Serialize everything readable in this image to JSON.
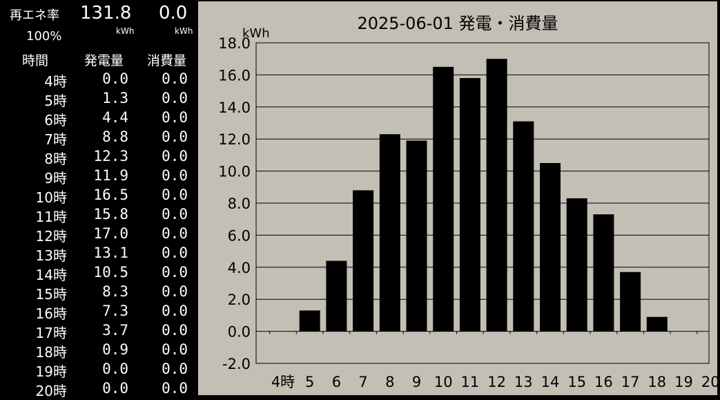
{
  "panel": {
    "renewable_label": "再エネ率",
    "renewable_rate": "100%",
    "total_generation": "131.8",
    "total_consumption": "0.0",
    "gen_unit": "kWh",
    "cons_unit": "kWh",
    "headers": {
      "time": "時間",
      "generation": "発電量",
      "consumption": "消費量"
    },
    "rows": [
      {
        "hour": "4時",
        "gen": "0.0",
        "cons": "0.0"
      },
      {
        "hour": "5時",
        "gen": "1.3",
        "cons": "0.0"
      },
      {
        "hour": "6時",
        "gen": "4.4",
        "cons": "0.0"
      },
      {
        "hour": "7時",
        "gen": "8.8",
        "cons": "0.0"
      },
      {
        "hour": "8時",
        "gen": "12.3",
        "cons": "0.0"
      },
      {
        "hour": "9時",
        "gen": "11.9",
        "cons": "0.0"
      },
      {
        "hour": "10時",
        "gen": "16.5",
        "cons": "0.0"
      },
      {
        "hour": "11時",
        "gen": "15.8",
        "cons": "0.0"
      },
      {
        "hour": "12時",
        "gen": "17.0",
        "cons": "0.0"
      },
      {
        "hour": "13時",
        "gen": "13.1",
        "cons": "0.0"
      },
      {
        "hour": "14時",
        "gen": "10.5",
        "cons": "0.0"
      },
      {
        "hour": "15時",
        "gen": "8.3",
        "cons": "0.0"
      },
      {
        "hour": "16時",
        "gen": "7.3",
        "cons": "0.0"
      },
      {
        "hour": "17時",
        "gen": "3.7",
        "cons": "0.0"
      },
      {
        "hour": "18時",
        "gen": "0.9",
        "cons": "0.0"
      },
      {
        "hour": "19時",
        "gen": "0.0",
        "cons": "0.0"
      },
      {
        "hour": "20時",
        "gen": "0.0",
        "cons": "0.0"
      }
    ]
  },
  "chart_data": {
    "type": "bar",
    "title": "2025-06-01 発電・消費量",
    "ylabel": "kWh",
    "xlabel": "",
    "categories": [
      "4時",
      "5",
      "6",
      "7",
      "8",
      "9",
      "10",
      "11",
      "12",
      "13",
      "14",
      "15",
      "16",
      "17",
      "18",
      "19",
      "20"
    ],
    "values": [
      0.0,
      1.3,
      4.4,
      8.8,
      12.3,
      11.9,
      16.5,
      15.8,
      17.0,
      13.1,
      10.5,
      8.3,
      7.3,
      3.7,
      0.9,
      0.0,
      0.0
    ],
    "ylim": [
      -2.0,
      18.0
    ],
    "yticks": [
      "-2.0",
      "0.0",
      "2.0",
      "4.0",
      "6.0",
      "8.0",
      "10.0",
      "12.0",
      "14.0",
      "16.0",
      "18.0"
    ],
    "grid": true,
    "colors": {
      "background": "#c3bfb5",
      "bar": "#000000",
      "grid": "#000000"
    }
  }
}
